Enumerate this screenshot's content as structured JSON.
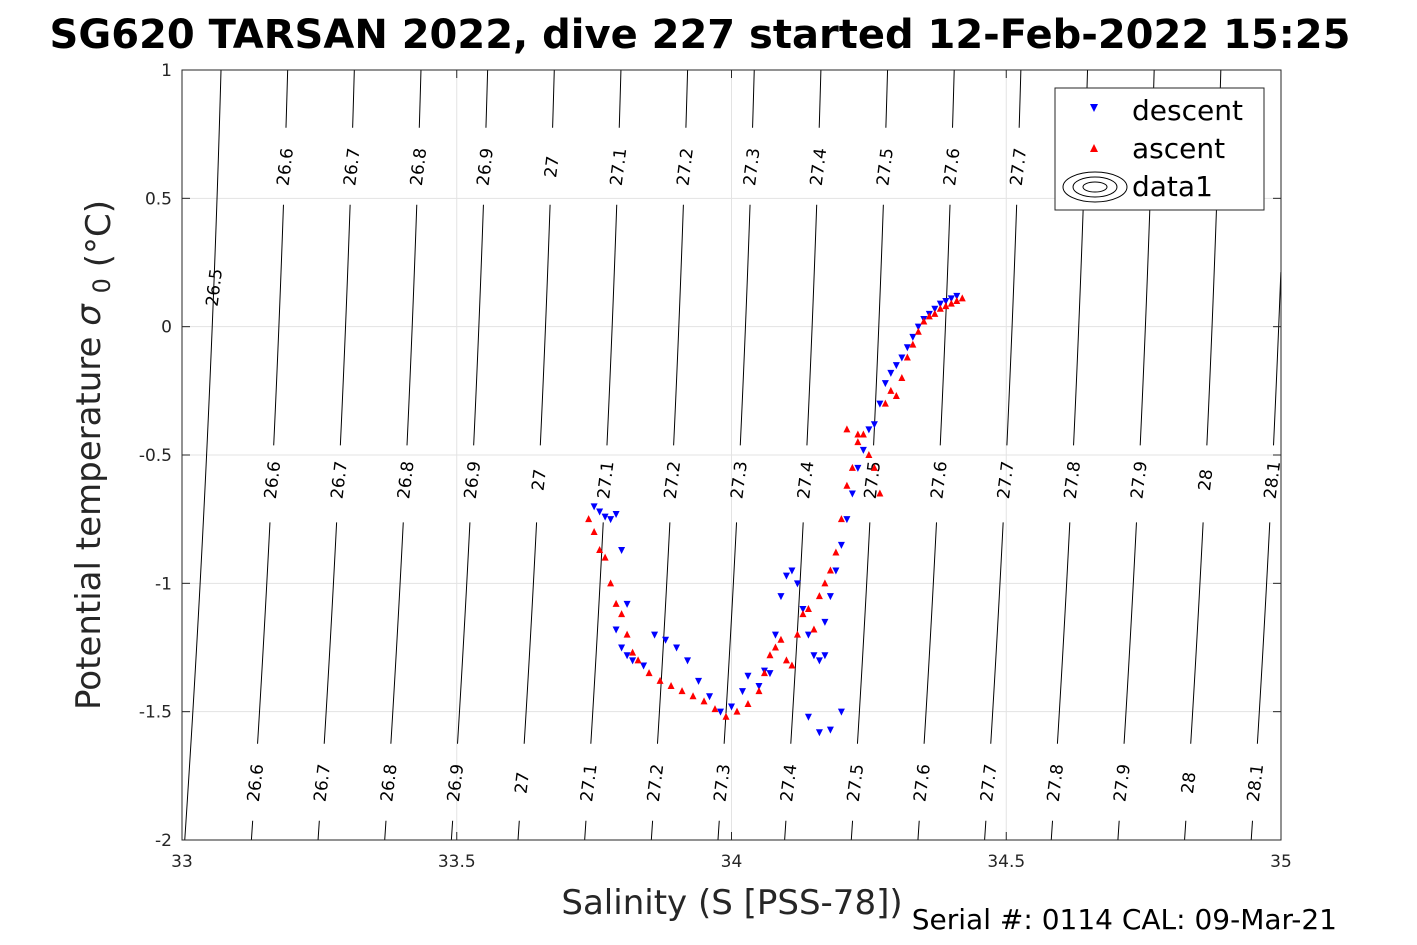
{
  "chart_data": {
    "type": "scatter",
    "title": "SG620 TARSAN 2022, dive 227 started 12-Feb-2022 15:25",
    "xlabel": "Salinity (S [PSS-78])",
    "ylabel_main": "Potential temperature",
    "ylabel_symbol": "σ",
    "ylabel_sub": "0",
    "ylabel_unit": "(°C)",
    "xlim": [
      33,
      35
    ],
    "ylim": [
      -2,
      1
    ],
    "xticks": [
      "33",
      "33.5",
      "34",
      "34.5",
      "35"
    ],
    "yticks": [
      "1",
      "0.5",
      "0",
      "-0.5",
      "-1",
      "-1.5",
      "-2"
    ],
    "grid": true,
    "legend_position": "top-right",
    "legend": [
      "descent",
      "ascent",
      "data1"
    ],
    "series_colors": {
      "descent": "#0000ff",
      "ascent": "#ff0000",
      "contours": "#000000"
    },
    "contours": {
      "levels": [
        "26.5",
        "26.6",
        "26.7",
        "26.8",
        "26.9",
        "27",
        "27.1",
        "27.2",
        "27.3",
        "27.4",
        "27.5",
        "27.6",
        "27.7",
        "27.8",
        "27.9",
        "28",
        "28.1"
      ],
      "label_rows": [
        [
          "26.6",
          "26.7",
          "26.8",
          "26.9",
          "27",
          "27.1",
          "27.2",
          "27.3",
          "27.4",
          "27.5",
          "27.6",
          "27.7"
        ],
        [
          "26.6",
          "26.7",
          "26.8",
          "26.9",
          "27",
          "27.1",
          "27.2",
          "27.3",
          "27.4",
          "27.5",
          "27.6",
          "27.7",
          "27.8",
          "27.9",
          "28",
          "28.1"
        ],
        [
          "26.6",
          "26.7",
          "26.8",
          "26.9",
          "27",
          "27.1",
          "27.2",
          "27.3",
          "27.4",
          "27.5",
          "27.6",
          "27.7",
          "27.8",
          "27.9",
          "28",
          "28.1"
        ]
      ]
    },
    "series": [
      {
        "name": "descent",
        "marker": "triangle-down",
        "points": [
          [
            33.75,
            -0.7
          ],
          [
            33.76,
            -0.72
          ],
          [
            33.77,
            -0.74
          ],
          [
            33.78,
            -0.75
          ],
          [
            33.79,
            -0.73
          ],
          [
            33.8,
            -0.87
          ],
          [
            33.81,
            -1.08
          ],
          [
            33.79,
            -1.18
          ],
          [
            33.8,
            -1.25
          ],
          [
            33.81,
            -1.28
          ],
          [
            33.82,
            -1.3
          ],
          [
            33.84,
            -1.32
          ],
          [
            33.86,
            -1.2
          ],
          [
            33.88,
            -1.22
          ],
          [
            33.9,
            -1.25
          ],
          [
            33.92,
            -1.3
          ],
          [
            33.94,
            -1.38
          ],
          [
            33.96,
            -1.44
          ],
          [
            33.98,
            -1.5
          ],
          [
            34.0,
            -1.48
          ],
          [
            34.02,
            -1.42
          ],
          [
            34.03,
            -1.36
          ],
          [
            34.05,
            -1.4
          ],
          [
            34.06,
            -1.34
          ],
          [
            34.07,
            -1.35
          ],
          [
            34.08,
            -1.2
          ],
          [
            34.09,
            -1.05
          ],
          [
            34.1,
            -0.97
          ],
          [
            34.11,
            -0.95
          ],
          [
            34.12,
            -1.0
          ],
          [
            34.13,
            -1.1
          ],
          [
            34.14,
            -1.2
          ],
          [
            34.15,
            -1.28
          ],
          [
            34.16,
            -1.3
          ],
          [
            34.17,
            -1.28
          ],
          [
            34.14,
            -1.52
          ],
          [
            34.16,
            -1.58
          ],
          [
            34.18,
            -1.57
          ],
          [
            34.2,
            -1.5
          ],
          [
            34.17,
            -1.15
          ],
          [
            34.18,
            -1.05
          ],
          [
            34.19,
            -0.95
          ],
          [
            34.2,
            -0.85
          ],
          [
            34.21,
            -0.75
          ],
          [
            34.22,
            -0.65
          ],
          [
            34.23,
            -0.55
          ],
          [
            34.24,
            -0.48
          ],
          [
            34.25,
            -0.4
          ],
          [
            34.26,
            -0.38
          ],
          [
            34.27,
            -0.3
          ],
          [
            34.28,
            -0.22
          ],
          [
            34.29,
            -0.18
          ],
          [
            34.3,
            -0.15
          ],
          [
            34.31,
            -0.12
          ],
          [
            34.32,
            -0.08
          ],
          [
            34.33,
            -0.04
          ],
          [
            34.34,
            0.0
          ],
          [
            34.35,
            0.03
          ],
          [
            34.36,
            0.05
          ],
          [
            34.37,
            0.07
          ],
          [
            34.38,
            0.09
          ],
          [
            34.39,
            0.1
          ],
          [
            34.4,
            0.11
          ],
          [
            34.41,
            0.12
          ]
        ]
      },
      {
        "name": "ascent",
        "marker": "triangle-up",
        "points": [
          [
            33.74,
            -0.75
          ],
          [
            33.75,
            -0.8
          ],
          [
            33.76,
            -0.87
          ],
          [
            33.77,
            -0.9
          ],
          [
            33.78,
            -1.0
          ],
          [
            33.79,
            -1.08
          ],
          [
            33.8,
            -1.12
          ],
          [
            33.81,
            -1.2
          ],
          [
            33.82,
            -1.27
          ],
          [
            33.83,
            -1.3
          ],
          [
            33.85,
            -1.35
          ],
          [
            33.87,
            -1.38
          ],
          [
            33.89,
            -1.4
          ],
          [
            33.91,
            -1.42
          ],
          [
            33.93,
            -1.44
          ],
          [
            33.95,
            -1.46
          ],
          [
            33.97,
            -1.49
          ],
          [
            33.99,
            -1.52
          ],
          [
            34.01,
            -1.5
          ],
          [
            34.03,
            -1.47
          ],
          [
            34.05,
            -1.42
          ],
          [
            34.06,
            -1.35
          ],
          [
            34.07,
            -1.28
          ],
          [
            34.08,
            -1.25
          ],
          [
            34.09,
            -1.22
          ],
          [
            34.1,
            -1.3
          ],
          [
            34.11,
            -1.32
          ],
          [
            34.12,
            -1.2
          ],
          [
            34.13,
            -1.12
          ],
          [
            34.14,
            -1.1
          ],
          [
            34.15,
            -1.18
          ],
          [
            34.16,
            -1.05
          ],
          [
            34.17,
            -1.0
          ],
          [
            34.18,
            -0.95
          ],
          [
            34.19,
            -0.88
          ],
          [
            34.2,
            -0.75
          ],
          [
            34.21,
            -0.62
          ],
          [
            34.22,
            -0.55
          ],
          [
            34.23,
            -0.45
          ],
          [
            34.24,
            -0.42
          ],
          [
            34.25,
            -0.5
          ],
          [
            34.26,
            -0.55
          ],
          [
            34.27,
            -0.65
          ],
          [
            34.21,
            -0.4
          ],
          [
            34.23,
            -0.42
          ],
          [
            34.28,
            -0.3
          ],
          [
            34.29,
            -0.25
          ],
          [
            34.3,
            -0.27
          ],
          [
            34.31,
            -0.2
          ],
          [
            34.32,
            -0.12
          ],
          [
            34.33,
            -0.07
          ],
          [
            34.34,
            -0.02
          ],
          [
            34.35,
            0.02
          ],
          [
            34.36,
            0.04
          ],
          [
            34.37,
            0.05
          ],
          [
            34.38,
            0.07
          ],
          [
            34.39,
            0.08
          ],
          [
            34.4,
            0.09
          ],
          [
            34.41,
            0.1
          ],
          [
            34.42,
            0.11
          ]
        ]
      }
    ]
  },
  "footer": {
    "text": "Serial #: 0114  CAL: 09-Mar-21"
  }
}
